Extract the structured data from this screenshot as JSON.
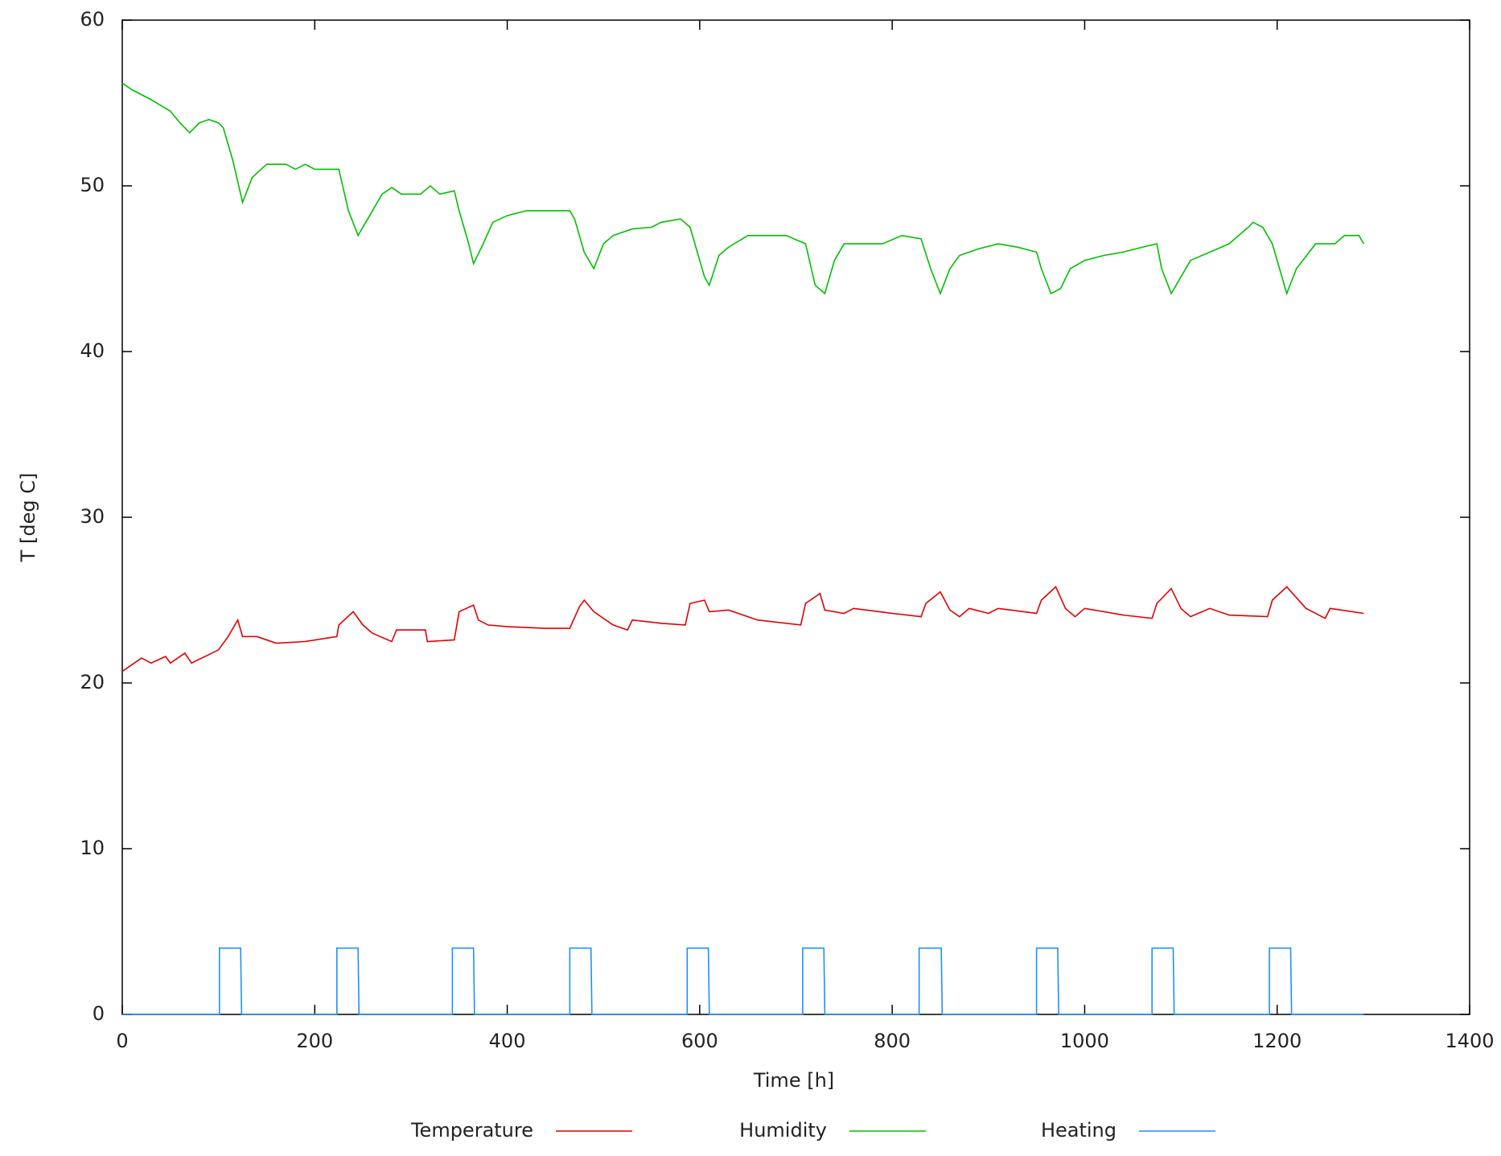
{
  "chart_data": {
    "type": "line",
    "xlabel": "Time [h]",
    "ylabel": "T [deg C]",
    "xlim": [
      0,
      1400
    ],
    "xticks": [
      0,
      200,
      400,
      600,
      800,
      1000,
      1200,
      1400
    ],
    "ylim": [
      0,
      60
    ],
    "yticks": [
      0,
      10,
      20,
      30,
      40,
      50,
      60
    ],
    "grid": false,
    "legend": "bottom",
    "series": [
      {
        "name": "Temperature",
        "color": "#e00000",
        "x": [
          0,
          20,
          30,
          45,
          50,
          65,
          72,
          100,
          110,
          120,
          125,
          140,
          160,
          190,
          223,
          225,
          240,
          250,
          260,
          280,
          285,
          315,
          317,
          345,
          350,
          365,
          370,
          380,
          400,
          440,
          465,
          475,
          480,
          490,
          510,
          525,
          530,
          560,
          585,
          590,
          605,
          610,
          630,
          660,
          705,
          710,
          725,
          730,
          750,
          760,
          800,
          830,
          835,
          850,
          860,
          870,
          880,
          900,
          910,
          950,
          955,
          970,
          980,
          990,
          1000,
          1040,
          1070,
          1075,
          1090,
          1100,
          1110,
          1130,
          1150,
          1190,
          1195,
          1210,
          1230,
          1250,
          1255,
          1290
        ],
        "values": [
          20.7,
          21.5,
          21.2,
          21.6,
          21.2,
          21.8,
          21.2,
          22,
          22.8,
          23.8,
          22.8,
          22.8,
          22.4,
          22.5,
          22.8,
          23.5,
          24.3,
          23.5,
          23,
          22.5,
          23.2,
          23.2,
          22.5,
          22.6,
          24.3,
          24.7,
          23.8,
          23.5,
          23.4,
          23.3,
          23.3,
          24.6,
          25,
          24.3,
          23.5,
          23.2,
          23.8,
          23.6,
          23.5,
          24.8,
          25,
          24.3,
          24.4,
          23.8,
          23.5,
          24.8,
          25.4,
          24.4,
          24.2,
          24.5,
          24.2,
          24,
          24.8,
          25.5,
          24.4,
          24,
          24.5,
          24.2,
          24.5,
          24.2,
          25,
          25.8,
          24.5,
          24,
          24.5,
          24.1,
          23.9,
          24.8,
          25.7,
          24.5,
          24,
          24.5,
          24.1,
          24,
          25,
          25.8,
          24.5,
          23.9,
          24.5,
          24.2
        ]
      },
      {
        "name": "Humidity",
        "color": "#00c000",
        "x": [
          0,
          10,
          30,
          50,
          60,
          70,
          80,
          90,
          100,
          105,
          115,
          125,
          135,
          150,
          170,
          180,
          190,
          200,
          225,
          235,
          245,
          255,
          270,
          280,
          290,
          310,
          320,
          330,
          345,
          350,
          360,
          365,
          375,
          385,
          400,
          420,
          440,
          465,
          470,
          480,
          490,
          500,
          510,
          530,
          550,
          560,
          580,
          590,
          595,
          605,
          610,
          620,
          630,
          650,
          670,
          690,
          710,
          720,
          730,
          740,
          750,
          770,
          790,
          810,
          830,
          840,
          850,
          860,
          870,
          890,
          910,
          930,
          950,
          955,
          965,
          975,
          985,
          1000,
          1020,
          1040,
          1060,
          1075,
          1080,
          1090,
          1100,
          1110,
          1130,
          1150,
          1170,
          1175,
          1185,
          1195,
          1210,
          1220,
          1240,
          1260,
          1270,
          1285,
          1290
        ],
        "values": [
          56.2,
          55.8,
          55.2,
          54.5,
          53.8,
          53.2,
          53.8,
          54,
          53.8,
          53.5,
          51.5,
          49,
          50.5,
          51.3,
          51.3,
          51,
          51.3,
          51,
          51,
          48.5,
          47,
          48,
          49.5,
          49.9,
          49.5,
          49.5,
          50,
          49.5,
          49.7,
          48.5,
          46.5,
          45.3,
          46.5,
          47.8,
          48.2,
          48.5,
          48.5,
          48.5,
          48,
          46,
          45,
          46.5,
          47,
          47.4,
          47.5,
          47.8,
          48,
          47.5,
          46.5,
          44.5,
          44,
          45.8,
          46.3,
          47,
          47,
          47,
          46.5,
          44,
          43.5,
          45.5,
          46.5,
          46.5,
          46.5,
          47,
          46.8,
          45,
          43.5,
          45,
          45.8,
          46.2,
          46.5,
          46.3,
          46,
          45,
          43.5,
          43.8,
          45,
          45.5,
          45.8,
          46,
          46.3,
          46.5,
          45,
          43.5,
          44.5,
          45.5,
          46,
          46.5,
          47.5,
          47.8,
          47.5,
          46.5,
          43.5,
          45,
          46.5,
          46.5,
          47,
          47,
          46.5
        ]
      },
      {
        "name": "Heating",
        "color": "#1f8fff",
        "x": [
          0,
          101,
          101,
          123,
          124,
          223,
          223,
          245,
          246,
          343,
          343,
          365,
          366,
          465,
          465,
          487,
          488,
          587,
          587,
          609,
          610,
          707,
          707,
          729,
          730,
          828,
          828,
          851,
          852,
          950,
          950,
          972,
          973,
          1070,
          1070,
          1092,
          1093,
          1192,
          1192,
          1214,
          1215,
          1290
        ],
        "values": [
          0,
          0,
          4,
          4,
          0,
          0,
          4,
          4,
          0,
          0,
          4,
          4,
          0,
          0,
          4,
          4,
          0,
          0,
          4,
          4,
          0,
          0,
          4,
          4,
          0,
          0,
          4,
          4,
          0,
          0,
          4,
          4,
          0,
          0,
          4,
          4,
          0,
          0,
          4,
          4,
          0,
          0
        ]
      }
    ]
  }
}
